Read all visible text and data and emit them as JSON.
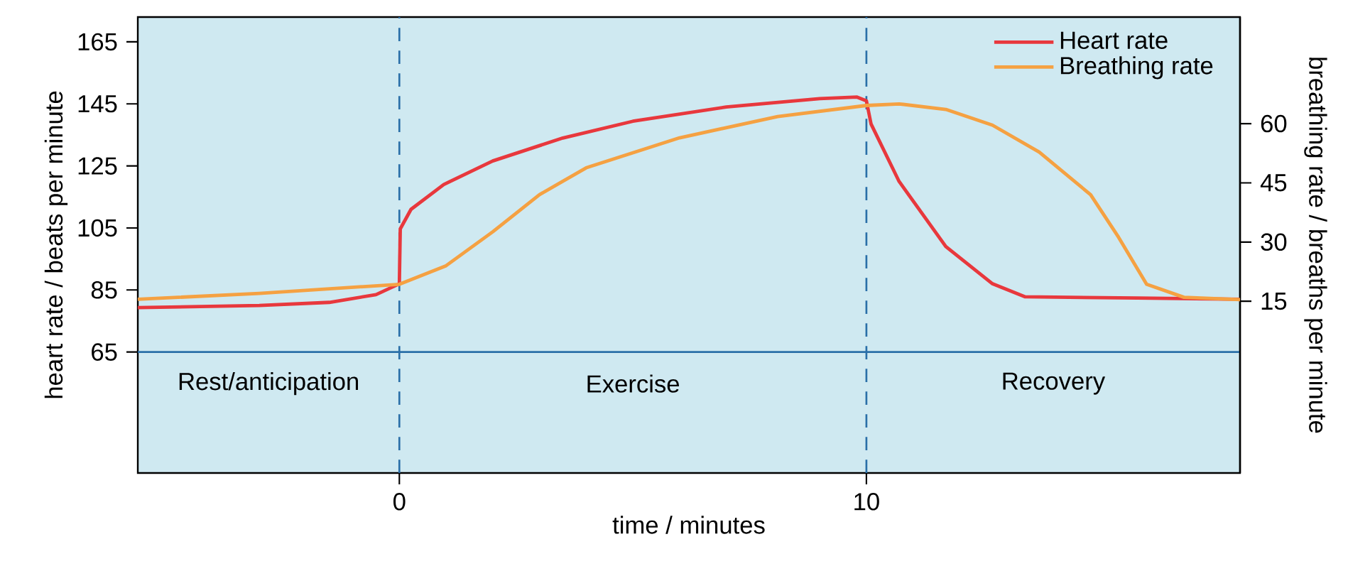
{
  "chart_data": {
    "type": "line",
    "xlabel": "time / minutes",
    "ylabel": "heart rate / beats per minute",
    "y2label": "breathing rate / breaths per minute",
    "xlim": [
      -5.6,
      18
    ],
    "xticks": [
      0,
      10
    ],
    "ylim": [
      26,
      173
    ],
    "yticks": [
      65,
      85,
      105,
      125,
      145,
      165
    ],
    "y2lim": [
      -28.5,
      87
    ],
    "y2ticks": [
      15,
      30,
      45,
      60
    ],
    "legend": "top right",
    "line_style": "solid",
    "series": [
      {
        "name": "Heart rate",
        "color": "#e8383d",
        "x": [
          -5.6,
          -3,
          -1.5,
          -0.5,
          0,
          0.02,
          0.25,
          0.95,
          2,
          3.5,
          5,
          7,
          9,
          9.8,
          10,
          10.1,
          10.7,
          11.7,
          12.7,
          13.4,
          15.8,
          18
        ],
        "values": [
          79.3,
          80,
          81,
          83.5,
          87,
          104.7,
          111,
          119,
          126.6,
          134,
          139.4,
          144,
          146.7,
          147.2,
          146,
          138.5,
          120,
          99,
          87,
          82.8,
          82.4,
          82
        ]
      },
      {
        "name": "Breathing rate",
        "color": "#f5a142",
        "axis": "y2",
        "x": [
          -5.6,
          -3,
          0,
          1,
          2,
          3,
          4,
          6,
          8.1,
          10,
          10.7,
          11.7,
          12.7,
          13.7,
          14.8,
          15.4,
          16,
          16.8,
          18
        ],
        "values": [
          15.5,
          17,
          19.3,
          24,
          32.6,
          42,
          48.8,
          56.4,
          61.8,
          64.6,
          65,
          63.6,
          59.6,
          52.8,
          42,
          31.2,
          19.3,
          16,
          15.4
        ]
      }
    ],
    "ref_lines": [
      {
        "axis": "y",
        "value": 65,
        "color": "#2a6fa8",
        "line_style": "solid"
      },
      {
        "axis": "x",
        "value": 0,
        "color": "#2a6fa8",
        "line_style": "dashed"
      },
      {
        "axis": "x",
        "value": 10,
        "color": "#2a6fa8",
        "line_style": "dashed"
      }
    ],
    "annotations": [
      "Rest/anticipation",
      "Exercise",
      "Recovery"
    ]
  }
}
